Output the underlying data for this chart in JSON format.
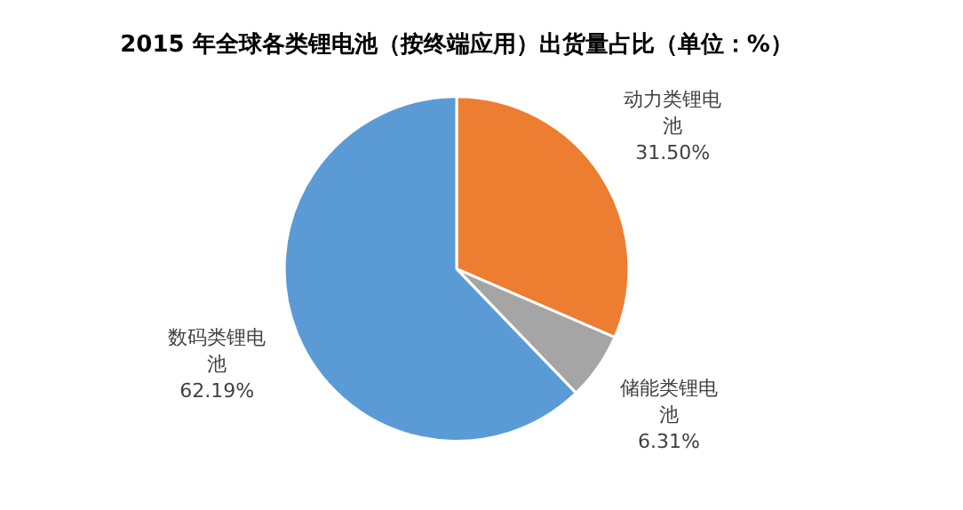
{
  "chart_data": {
    "type": "pie",
    "title": "2015 年全球各类锂电池（按终端应用）出货量占比（单位：%）",
    "categories": [
      "动力类锂电池",
      "储能类锂电池",
      "数码类锂电池"
    ],
    "values": [
      31.5,
      6.31,
      62.19
    ],
    "colors": [
      "#ed7d31",
      "#a5a5a5",
      "#5b9bd5"
    ],
    "value_labels": [
      "31.50%",
      "6.31%",
      "62.19%"
    ],
    "legend": false
  }
}
